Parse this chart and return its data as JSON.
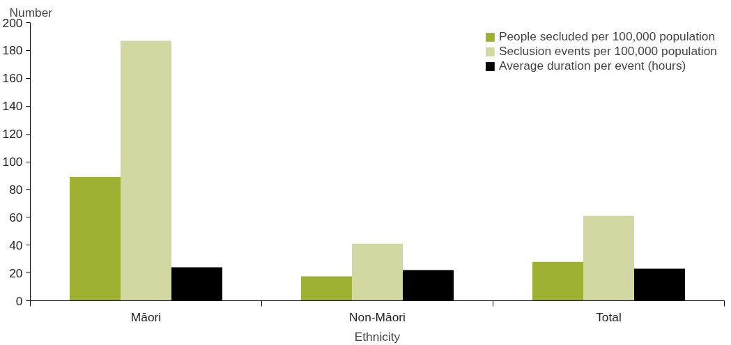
{
  "chart_data": {
    "type": "bar",
    "xlabel": "Ethnicity",
    "ylabel": "Number",
    "categories": [
      "Māori",
      "Non-Māori",
      "Total"
    ],
    "series": [
      {
        "name": "People secluded per 100,000 population",
        "color": "#a0b032",
        "values": [
          89,
          17.5,
          28
        ]
      },
      {
        "name": "Seclusion events per 100,000 population",
        "color": "#d3d8a3",
        "values": [
          187,
          41,
          61
        ]
      },
      {
        "name": "Average duration per event (hours)",
        "color": "#000000",
        "values": [
          24,
          22,
          23
        ]
      }
    ],
    "ylim": [
      0,
      200
    ],
    "yticks": [
      0,
      20,
      40,
      60,
      80,
      100,
      120,
      140,
      160,
      180,
      200
    ],
    "grid": false,
    "legend": "top right"
  }
}
